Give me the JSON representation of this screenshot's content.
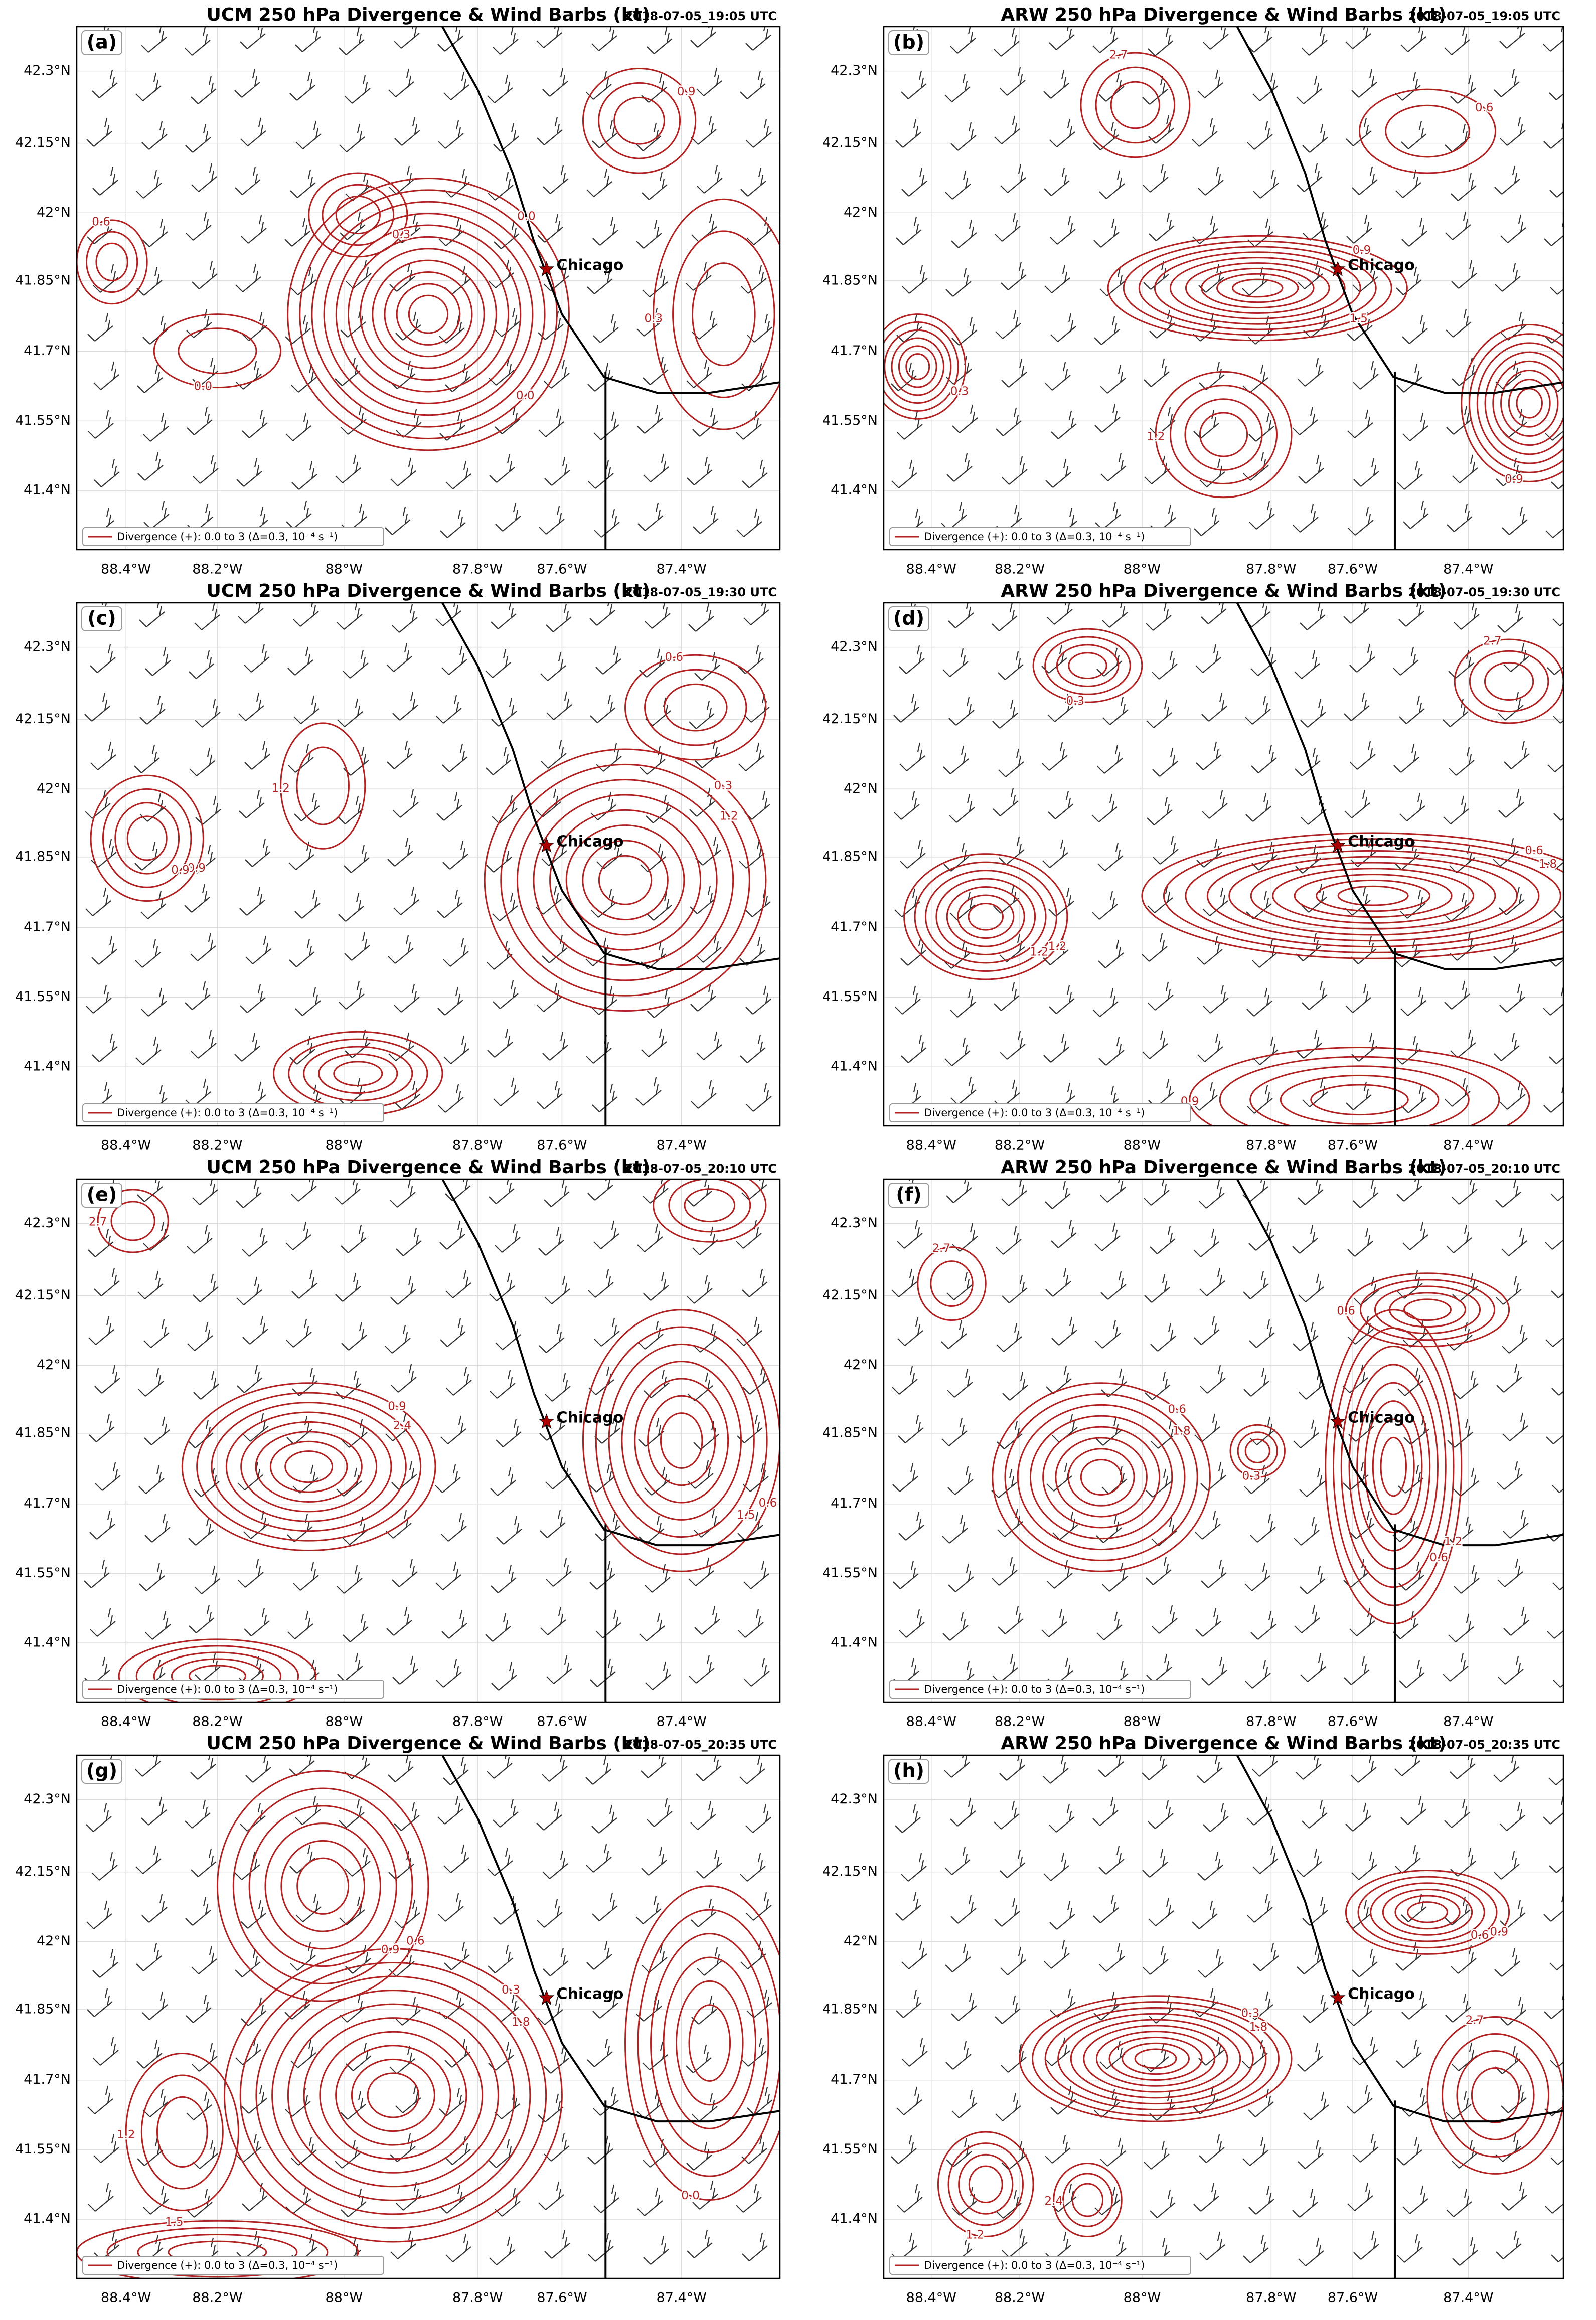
{
  "panels": [
    {
      "letter": "(a)",
      "title": "UCM 250 hPa Divergence & Wind Barbs (kt)",
      "time": "2018-07-05_19:05 UTC",
      "contour_labels": [
        "0.0",
        "0.3",
        "0.0",
        "0.3",
        "0.6",
        "0.9",
        "0.0"
      ]
    },
    {
      "letter": "(b)",
      "title": "ARW 250 hPa Divergence & Wind Barbs (kt)",
      "time": "2018-07-05_19:05 UTC",
      "contour_labels": [
        "0.9",
        "0.3",
        "0.9",
        "1.2",
        "2.7",
        "0.6",
        "1.5"
      ]
    },
    {
      "letter": "(c)",
      "title": "UCM 250 hPa Divergence & Wind Barbs (kt)",
      "time": "2018-07-05_19:30 UTC",
      "contour_labels": [
        "0.3",
        "0.9",
        "0.0",
        "1.2",
        "0.6",
        "1.2",
        "0.9"
      ]
    },
    {
      "letter": "(d)",
      "title": "ARW 250 hPa Divergence & Wind Barbs (kt)",
      "time": "2018-07-05_19:30 UTC",
      "contour_labels": [
        "0.6",
        "1.2",
        "0.3",
        "0.9",
        "2.7",
        "1.8",
        "1.2"
      ]
    },
    {
      "letter": "(e)",
      "title": "UCM 250 hPa Divergence & Wind Barbs (kt)",
      "time": "2018-07-05_20:10 UTC",
      "contour_labels": [
        "0.9",
        "0.6",
        "1.8",
        "2.7",
        "0.3",
        "2.4",
        "1.5"
      ]
    },
    {
      "letter": "(f)",
      "title": "ARW 250 hPa Divergence & Wind Barbs (kt)",
      "time": "2018-07-05_20:10 UTC",
      "contour_labels": [
        "0.6",
        "1.2",
        "0.3",
        "0.6",
        "2.7",
        "1.8",
        "0.6"
      ]
    },
    {
      "letter": "(g)",
      "title": "UCM 250 hPa Divergence & Wind Barbs (kt)",
      "time": "2018-07-05_20:35 UTC",
      "contour_labels": [
        "0.3",
        "0.6",
        "0.0",
        "1.2",
        "1.5",
        "1.8",
        "0.9"
      ]
    },
    {
      "letter": "(h)",
      "title": "ARW 250 hPa Divergence & Wind Barbs (kt)",
      "time": "2018-07-05_20:35 UTC",
      "contour_labels": [
        "0.3",
        "0.9",
        "1.2",
        "2.4",
        "2.7",
        "1.8",
        "0.6"
      ]
    }
  ],
  "legend": "Divergence (+): 0.0 to 3 (Δ=0.3, 10⁻⁴ s⁻¹)",
  "city": "Chicago",
  "lat_ticks": [
    "42.3°N",
    "42.15°N",
    "42°N",
    "41.85°N",
    "41.7°N",
    "41.55°N",
    "41.4°N"
  ],
  "lon_ticks": [
    "88.4°W",
    "88.2°W",
    "88°W",
    "87.8°W",
    "87.6°W",
    "87.4°W"
  ]
}
